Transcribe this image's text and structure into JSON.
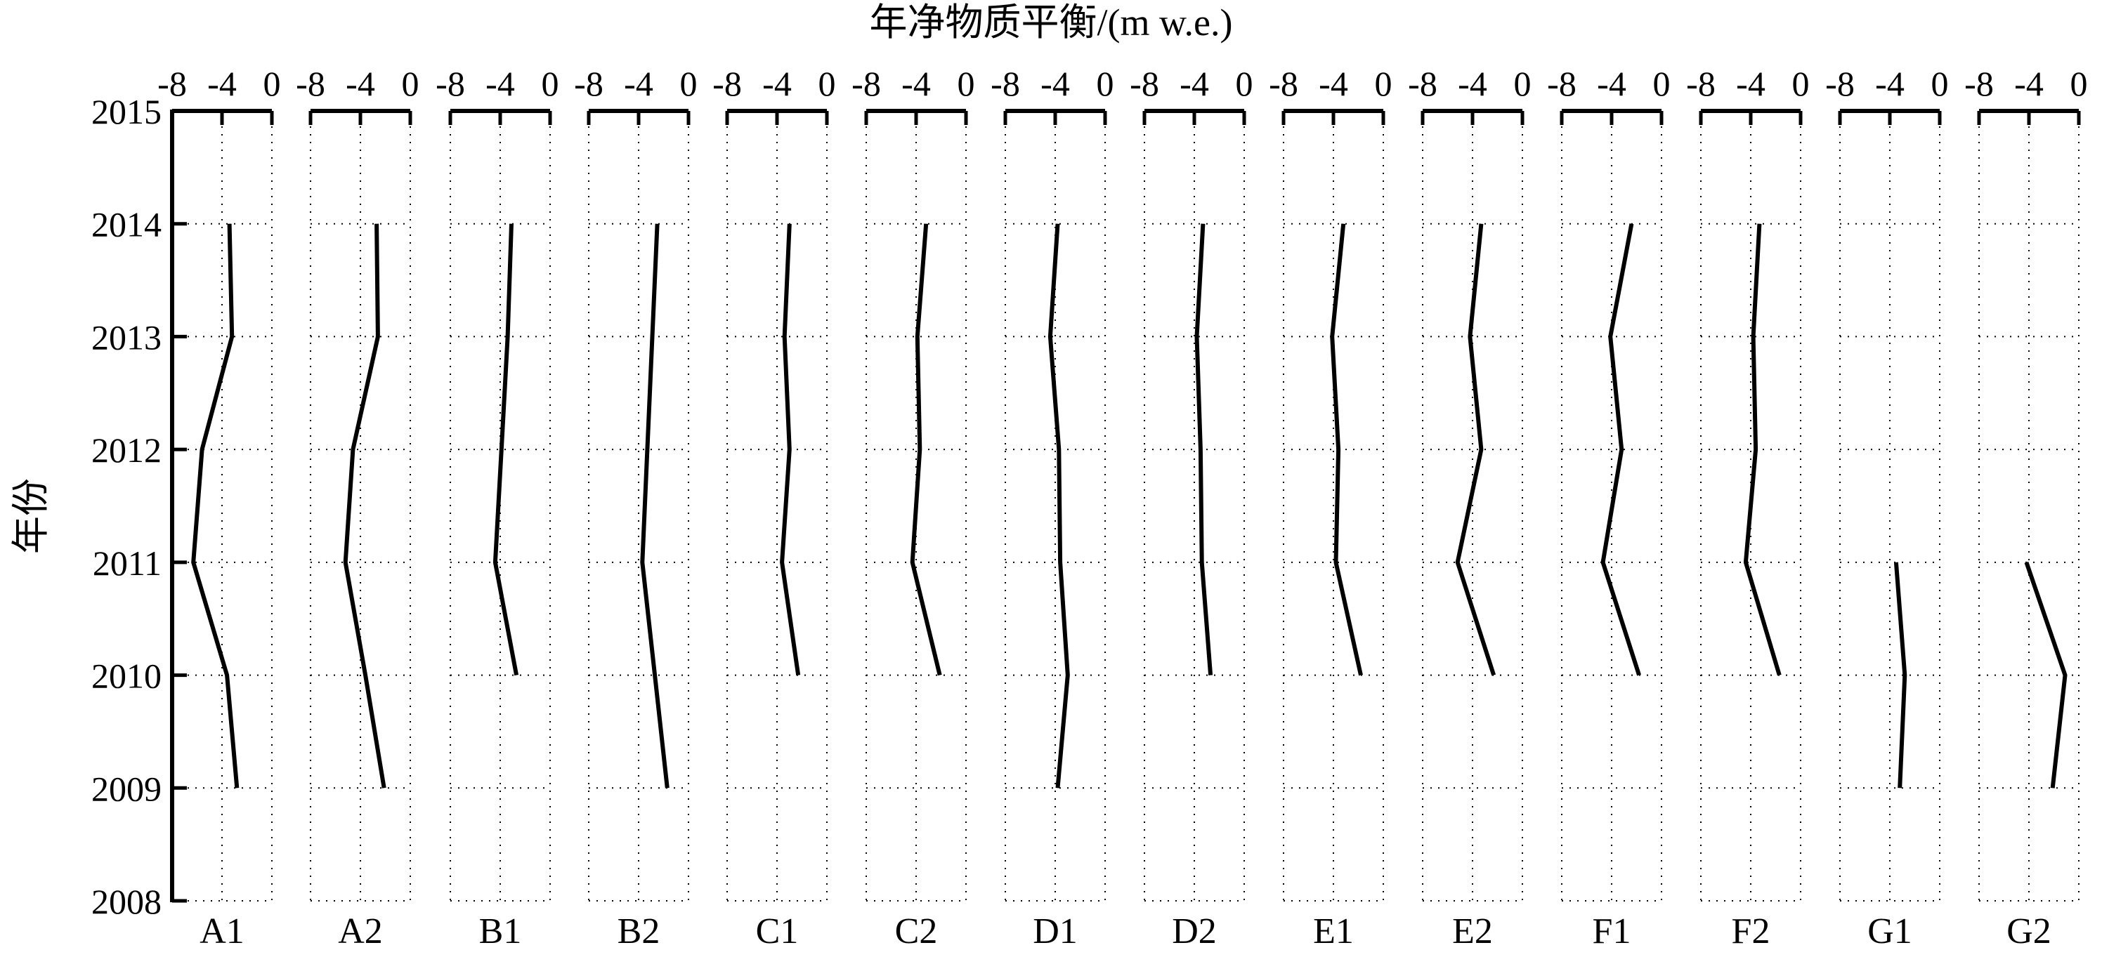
{
  "chart_data": {
    "type": "line",
    "orientation": "horizontal-values-vertical-years",
    "xlabel": "年净物质平衡/(m w.e.)",
    "ylabel": "年份",
    "xlim": [
      -8,
      0
    ],
    "x_ticks": [
      "-8",
      "-4",
      "0"
    ],
    "ylim": [
      2008,
      2015
    ],
    "y_ticks": [
      "2008",
      "2009",
      "2010",
      "2011",
      "2012",
      "2013",
      "2014",
      "2015"
    ],
    "grid": true,
    "grid_style": "dotted",
    "line_color": "#000000",
    "panels": [
      {
        "name": "A1",
        "points": [
          {
            "year": 2009,
            "value": -2.8
          },
          {
            "year": 2010,
            "value": -3.6
          },
          {
            "year": 2011,
            "value": -6.3
          },
          {
            "year": 2012,
            "value": -5.6
          },
          {
            "year": 2013,
            "value": -3.2
          },
          {
            "year": 2014,
            "value": -3.4
          }
        ]
      },
      {
        "name": "A2",
        "points": [
          {
            "year": 2009,
            "value": -2.1
          },
          {
            "year": 2010,
            "value": -3.6
          },
          {
            "year": 2011,
            "value": -5.2
          },
          {
            "year": 2012,
            "value": -4.6
          },
          {
            "year": 2013,
            "value": -2.6
          },
          {
            "year": 2014,
            "value": -2.7
          }
        ]
      },
      {
        "name": "B1",
        "points": [
          {
            "year": 2010,
            "value": -2.7
          },
          {
            "year": 2011,
            "value": -4.4
          },
          {
            "year": 2012,
            "value": -3.9
          },
          {
            "year": 2013,
            "value": -3.4
          },
          {
            "year": 2014,
            "value": -3.1
          }
        ]
      },
      {
        "name": "B2",
        "points": [
          {
            "year": 2009,
            "value": -1.7
          },
          {
            "year": 2010,
            "value": -2.7
          },
          {
            "year": 2011,
            "value": -3.7
          },
          {
            "year": 2012,
            "value": -3.3
          },
          {
            "year": 2013,
            "value": -2.9
          },
          {
            "year": 2014,
            "value": -2.5
          }
        ]
      },
      {
        "name": "C1",
        "points": [
          {
            "year": 2010,
            "value": -2.3
          },
          {
            "year": 2011,
            "value": -3.6
          },
          {
            "year": 2012,
            "value": -3.0
          },
          {
            "year": 2013,
            "value": -3.4
          },
          {
            "year": 2014,
            "value": -3.0
          }
        ]
      },
      {
        "name": "C2",
        "points": [
          {
            "year": 2010,
            "value": -2.1
          },
          {
            "year": 2011,
            "value": -4.3
          },
          {
            "year": 2012,
            "value": -3.7
          },
          {
            "year": 2013,
            "value": -3.9
          },
          {
            "year": 2014,
            "value": -3.2
          }
        ]
      },
      {
        "name": "D1",
        "points": [
          {
            "year": 2009,
            "value": -3.8
          },
          {
            "year": 2010,
            "value": -3.0
          },
          {
            "year": 2011,
            "value": -3.6
          },
          {
            "year": 2012,
            "value": -3.7
          },
          {
            "year": 2013,
            "value": -4.4
          },
          {
            "year": 2014,
            "value": -3.8
          }
        ]
      },
      {
        "name": "D2",
        "points": [
          {
            "year": 2010,
            "value": -2.7
          },
          {
            "year": 2011,
            "value": -3.4
          },
          {
            "year": 2012,
            "value": -3.5
          },
          {
            "year": 2013,
            "value": -3.8
          },
          {
            "year": 2014,
            "value": -3.3
          }
        ]
      },
      {
        "name": "E1",
        "points": [
          {
            "year": 2010,
            "value": -1.8
          },
          {
            "year": 2011,
            "value": -3.8
          },
          {
            "year": 2012,
            "value": -3.6
          },
          {
            "year": 2013,
            "value": -4.1
          },
          {
            "year": 2014,
            "value": -3.2
          }
        ]
      },
      {
        "name": "E2",
        "points": [
          {
            "year": 2010,
            "value": -2.3
          },
          {
            "year": 2011,
            "value": -5.2
          },
          {
            "year": 2012,
            "value": -3.3
          },
          {
            "year": 2013,
            "value": -4.2
          },
          {
            "year": 2014,
            "value": -3.3
          }
        ]
      },
      {
        "name": "F1",
        "points": [
          {
            "year": 2010,
            "value": -1.8
          },
          {
            "year": 2011,
            "value": -4.7
          },
          {
            "year": 2012,
            "value": -3.2
          },
          {
            "year": 2013,
            "value": -4.1
          },
          {
            "year": 2014,
            "value": -2.4
          }
        ]
      },
      {
        "name": "F2",
        "points": [
          {
            "year": 2010,
            "value": -1.7
          },
          {
            "year": 2011,
            "value": -4.4
          },
          {
            "year": 2012,
            "value": -3.6
          },
          {
            "year": 2013,
            "value": -3.8
          },
          {
            "year": 2014,
            "value": -3.3
          }
        ]
      },
      {
        "name": "G1",
        "points": [
          {
            "year": 2009,
            "value": -3.2
          },
          {
            "year": 2010,
            "value": -2.8
          },
          {
            "year": 2011,
            "value": -3.5
          }
        ]
      },
      {
        "name": "G2",
        "points": [
          {
            "year": 2009,
            "value": -2.1
          },
          {
            "year": 2010,
            "value": -1.1
          },
          {
            "year": 2011,
            "value": -4.2
          }
        ]
      }
    ]
  }
}
